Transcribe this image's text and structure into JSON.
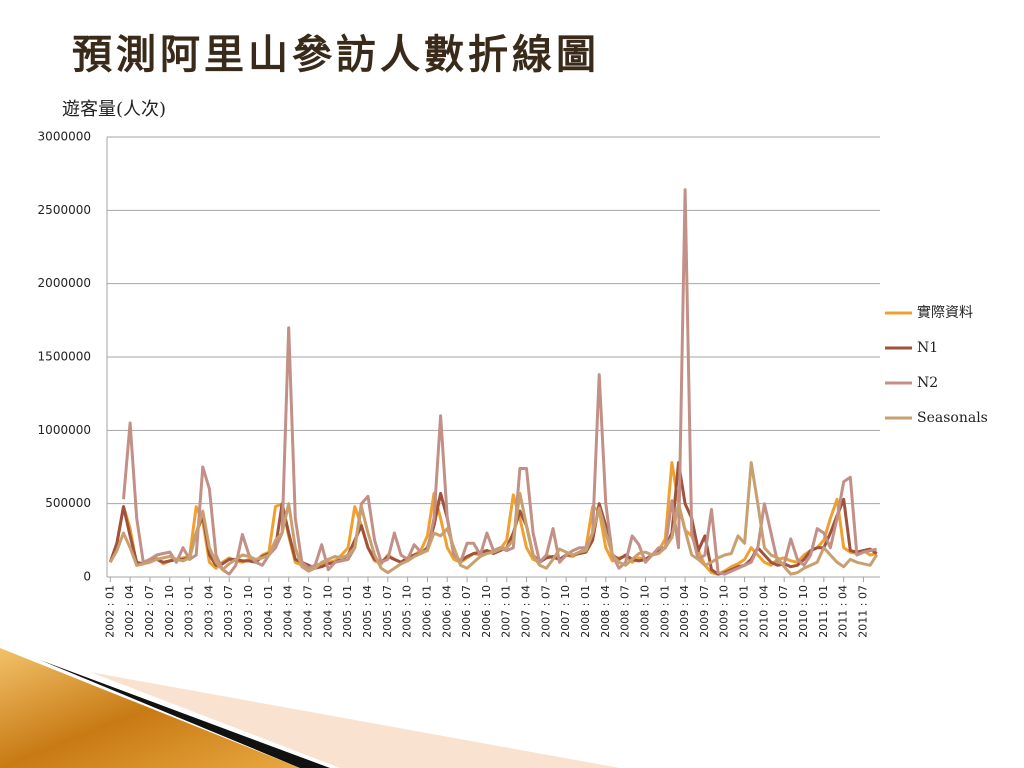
{
  "chart_data": {
    "type": "line",
    "title": "預測阿里山參訪人數折線圖",
    "y_label": "遊客量(人次)",
    "ylim": [
      0,
      3000000
    ],
    "yticks": [
      0,
      500000,
      1000000,
      1500000,
      2000000,
      2500000,
      3000000
    ],
    "grid": true,
    "legend": "right",
    "categories": [
      "2002 : 01",
      null,
      null,
      "2002 : 04",
      null,
      null,
      "2002 : 07",
      null,
      null,
      "2002 : 10",
      null,
      null,
      "2003 : 01",
      null,
      null,
      "2003 : 04",
      null,
      null,
      "2003 : 07",
      null,
      null,
      "2003 : 10",
      null,
      null,
      "2004 : 01",
      null,
      null,
      "2004 : 04",
      null,
      null,
      "2004 : 07",
      null,
      null,
      "2004 : 10",
      null,
      null,
      "2005 : 01",
      null,
      null,
      "2005 : 04",
      null,
      null,
      "2005 : 07",
      null,
      null,
      "2005 : 10",
      null,
      null,
      "2006 : 01",
      null,
      null,
      "2006 : 04",
      null,
      null,
      "2006 : 07",
      null,
      null,
      "2006 : 10",
      null,
      null,
      "2007 : 01",
      null,
      null,
      "2007 : 04",
      null,
      null,
      "2007 : 07",
      null,
      null,
      "2007 : 10",
      null,
      null,
      "2008 : 01",
      null,
      null,
      "2008 : 04",
      null,
      null,
      "2008 : 07",
      null,
      null,
      "2008 : 10",
      null,
      null,
      "2009 : 01",
      null,
      null,
      "2009 : 04",
      null,
      null,
      "2009 : 07",
      null,
      null,
      "2009 : 10",
      null,
      null,
      "2010 : 01",
      null,
      null,
      "2010 : 04",
      null,
      null,
      "2010 : 07",
      null,
      null,
      "2010 : 10",
      null,
      null,
      "2011 : 01",
      null,
      null,
      "2011 : 04",
      null,
      null,
      "2011 : 07",
      null,
      null
    ],
    "series": [
      {
        "name": "實際資料",
        "color": "#f0a030",
        "values": [
          100000,
          230000,
          480000,
          330000,
          80000,
          90000,
          110000,
          130000,
          90000,
          110000,
          120000,
          130000,
          140000,
          480000,
          380000,
          100000,
          60000,
          100000,
          130000,
          110000,
          100000,
          120000,
          110000,
          150000,
          170000,
          480000,
          500000,
          280000,
          100000,
          80000,
          60000,
          80000,
          90000,
          100000,
          110000,
          150000,
          200000,
          480000,
          350000,
          200000,
          110000,
          90000,
          150000,
          120000,
          100000,
          130000,
          150000,
          180000,
          280000,
          570000,
          400000,
          200000,
          120000,
          100000,
          130000,
          160000,
          150000,
          180000,
          170000,
          190000,
          250000,
          560000,
          400000,
          200000,
          120000,
          100000,
          150000,
          130000,
          120000,
          150000,
          140000,
          170000,
          200000,
          480000,
          450000,
          200000,
          110000,
          130000,
          140000,
          100000,
          130000,
          120000,
          150000,
          180000,
          260000,
          780000,
          500000,
          320000,
          280000,
          180000,
          80000,
          30000,
          20000,
          40000,
          70000,
          90000,
          120000,
          200000,
          150000,
          100000,
          80000,
          120000,
          130000,
          110000,
          100000,
          150000,
          180000,
          200000,
          250000,
          400000,
          530000,
          200000,
          170000,
          160000,
          180000,
          150000,
          160000
        ]
      },
      {
        "name": "N1",
        "color": "#a0523d",
        "values": [
          100000,
          230000,
          480000,
          280000,
          100000,
          90000,
          110000,
          120000,
          100000,
          110000,
          120000,
          120000,
          130000,
          300000,
          420000,
          150000,
          80000,
          90000,
          120000,
          120000,
          110000,
          110000,
          100000,
          140000,
          160000,
          200000,
          500000,
          300000,
          120000,
          100000,
          80000,
          60000,
          70000,
          90000,
          100000,
          120000,
          150000,
          250000,
          350000,
          200000,
          120000,
          100000,
          140000,
          120000,
          100000,
          130000,
          150000,
          160000,
          200000,
          350000,
          570000,
          400000,
          150000,
          110000,
          140000,
          160000,
          170000,
          180000,
          160000,
          180000,
          200000,
          300000,
          450000,
          350000,
          150000,
          100000,
          130000,
          140000,
          120000,
          150000,
          150000,
          160000,
          170000,
          250000,
          500000,
          350000,
          150000,
          120000,
          150000,
          120000,
          110000,
          120000,
          150000,
          170000,
          200000,
          300000,
          780000,
          500000,
          400000,
          180000,
          280000,
          50000,
          20000,
          30000,
          50000,
          70000,
          80000,
          120000,
          200000,
          150000,
          100000,
          80000,
          90000,
          70000,
          80000,
          120000,
          180000,
          200000,
          200000,
          300000,
          420000,
          530000,
          180000,
          170000,
          180000,
          190000,
          160000
        ]
      },
      {
        "name": "N2",
        "color": "#c39087",
        "values": [
          null,
          null,
          530000,
          1050000,
          400000,
          100000,
          120000,
          150000,
          160000,
          170000,
          100000,
          200000,
          120000,
          150000,
          750000,
          600000,
          150000,
          50000,
          20000,
          80000,
          290000,
          150000,
          100000,
          80000,
          150000,
          200000,
          300000,
          1700000,
          400000,
          100000,
          60000,
          80000,
          220000,
          50000,
          100000,
          110000,
          120000,
          200000,
          500000,
          550000,
          250000,
          100000,
          120000,
          300000,
          150000,
          120000,
          220000,
          170000,
          180000,
          400000,
          1100000,
          400000,
          150000,
          100000,
          230000,
          230000,
          150000,
          300000,
          180000,
          200000,
          180000,
          200000,
          740000,
          740000,
          300000,
          100000,
          150000,
          330000,
          100000,
          150000,
          180000,
          200000,
          200000,
          300000,
          1380000,
          500000,
          150000,
          60000,
          100000,
          280000,
          220000,
          100000,
          150000,
          200000,
          200000,
          520000,
          200000,
          2640000,
          300000,
          120000,
          150000,
          460000,
          30000,
          20000,
          40000,
          60000,
          80000,
          100000,
          200000,
          500000,
          300000,
          100000,
          90000,
          260000,
          120000,
          80000,
          150000,
          330000,
          300000,
          200000,
          400000,
          650000,
          680000,
          150000,
          170000,
          180000,
          190000
        ]
      },
      {
        "name": "Seasonals",
        "color": "#c8a070",
        "values": [
          100000,
          180000,
          300000,
          200000,
          80000,
          90000,
          100000,
          120000,
          130000,
          140000,
          120000,
          110000,
          130000,
          300000,
          450000,
          200000,
          100000,
          50000,
          90000,
          120000,
          150000,
          140000,
          120000,
          130000,
          150000,
          250000,
          300000,
          500000,
          200000,
          70000,
          40000,
          60000,
          100000,
          120000,
          140000,
          130000,
          150000,
          200000,
          480000,
          300000,
          150000,
          60000,
          30000,
          60000,
          90000,
          110000,
          140000,
          160000,
          180000,
          300000,
          280000,
          330000,
          200000,
          80000,
          60000,
          100000,
          140000,
          160000,
          170000,
          190000,
          200000,
          250000,
          570000,
          350000,
          150000,
          80000,
          60000,
          120000,
          190000,
          170000,
          150000,
          170000,
          180000,
          300000,
          470000,
          300000,
          150000,
          100000,
          80000,
          120000,
          160000,
          170000,
          150000,
          160000,
          200000,
          270000,
          500000,
          320000,
          150000,
          120000,
          80000,
          100000,
          130000,
          150000,
          160000,
          280000,
          230000,
          780000,
          500000,
          200000,
          150000,
          130000,
          70000,
          20000,
          30000,
          60000,
          80000,
          100000,
          200000,
          150000,
          100000,
          70000,
          120000,
          100000,
          90000,
          80000,
          150000
        ]
      }
    ]
  }
}
